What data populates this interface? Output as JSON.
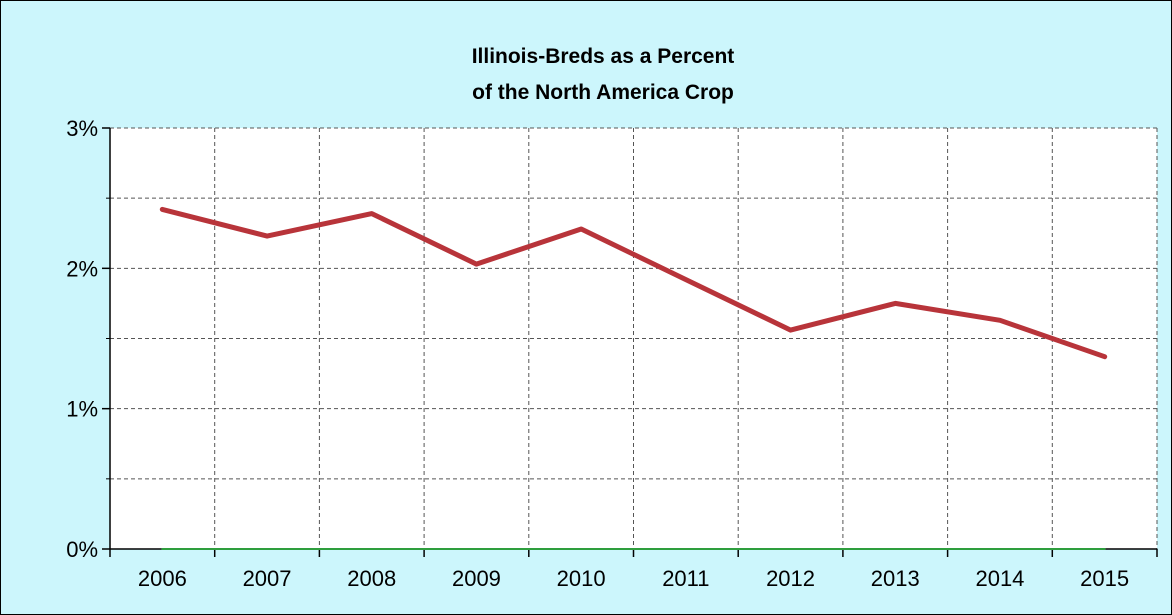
{
  "chart_data": {
    "type": "line",
    "title_lines": [
      "Illinois-Breds as a Percent",
      "of the North America Crop"
    ],
    "categories": [
      "2006",
      "2007",
      "2008",
      "2009",
      "2010",
      "2011",
      "2012",
      "2013",
      "2014",
      "2015"
    ],
    "series": [
      {
        "values": [
          2.42,
          2.23,
          2.39,
          2.03,
          2.28,
          1.92,
          1.56,
          1.75,
          1.63,
          1.37
        ],
        "color": "#b8343a"
      },
      {
        "values": [
          0,
          0,
          0,
          0,
          0,
          0,
          0,
          0,
          0,
          0
        ],
        "color": "#2e9e3e"
      }
    ],
    "y_ticks": [
      {
        "value": 0,
        "label": "0%"
      },
      {
        "value": 1,
        "label": "1%"
      },
      {
        "value": 2,
        "label": "2%"
      },
      {
        "value": 3,
        "label": "3%"
      }
    ],
    "y_minor_ticks": [
      0.5,
      1.5,
      2.5
    ],
    "ylim": [
      0,
      3
    ],
    "grid": true,
    "background_color": "#ccf6fc",
    "plot_background_color": "#ffffff"
  }
}
